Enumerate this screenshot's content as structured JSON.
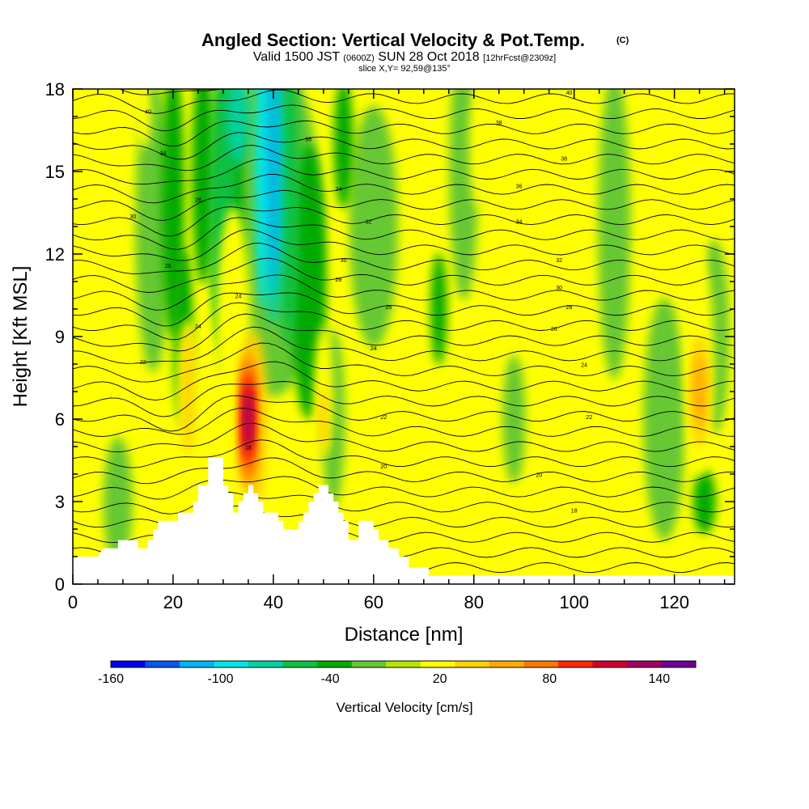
{
  "chart_data": {
    "type": "heatmap",
    "title": "Angled Section: Vertical Velocity & Pot.Temp.",
    "title_mark": "(C)",
    "subtitle": {
      "prefix": "Valid 1500 JST",
      "zulu": "(0600Z)",
      "date": "SUN 28 Oct 2018",
      "forecast": "[12hrFcst@2309z]"
    },
    "slice_label": "slice X,Y= 92,59@135°",
    "xlabel": "Distance [nm]",
    "ylabel": "Height [Kft MSL]",
    "xlim": [
      0,
      132
    ],
    "ylim": [
      0,
      18
    ],
    "x_ticks": [
      0,
      20,
      40,
      60,
      80,
      100,
      120
    ],
    "y_ticks": [
      0,
      3,
      6,
      9,
      12,
      15,
      18
    ],
    "colorbar": {
      "label": "Vertical Velocity [cm/s]",
      "tick_values": [
        -160,
        -100,
        -40,
        20,
        80,
        140
      ],
      "levels": [
        -160,
        -140,
        -120,
        -100,
        -80,
        -60,
        -40,
        -20,
        0,
        20,
        40,
        60,
        80,
        100,
        120,
        140,
        160
      ],
      "colors": [
        "#0000ee",
        "#0a55ee",
        "#00b4f0",
        "#00e6e6",
        "#00d2a0",
        "#10c040",
        "#00aa00",
        "#66c832",
        "#b4e600",
        "#ffff00",
        "#ffd200",
        "#ffaa00",
        "#ff7800",
        "#ff2800",
        "#d2002d",
        "#a00064",
        "#6e0096"
      ]
    },
    "terrain": [
      [
        0,
        1
      ],
      [
        5,
        1
      ],
      [
        6,
        1.3
      ],
      [
        9,
        1.3
      ],
      [
        9,
        1.6
      ],
      [
        13,
        1.6
      ],
      [
        13,
        1.3
      ],
      [
        15,
        1.3
      ],
      [
        15,
        1.6
      ],
      [
        16,
        1.6
      ],
      [
        16,
        2
      ],
      [
        17,
        2
      ],
      [
        17,
        2.3
      ],
      [
        21,
        2.3
      ],
      [
        21,
        2.6
      ],
      [
        24,
        2.6
      ],
      [
        24,
        3
      ],
      [
        25,
        3
      ],
      [
        25,
        3.6
      ],
      [
        27,
        3.6
      ],
      [
        27,
        4.6
      ],
      [
        30,
        4.6
      ],
      [
        30,
        3.6
      ],
      [
        31,
        3.6
      ],
      [
        31,
        3.3
      ],
      [
        32,
        3.3
      ],
      [
        32,
        2.6
      ],
      [
        33,
        2.6
      ],
      [
        33,
        3
      ],
      [
        34,
        3
      ],
      [
        34,
        3.3
      ],
      [
        35,
        3.3
      ],
      [
        35,
        3.6
      ],
      [
        36,
        3.6
      ],
      [
        36,
        3.3
      ],
      [
        37,
        3.3
      ],
      [
        37,
        3
      ],
      [
        38,
        3
      ],
      [
        38,
        2.6
      ],
      [
        41,
        2.6
      ],
      [
        41,
        2.3
      ],
      [
        42,
        2.3
      ],
      [
        42,
        2
      ],
      [
        45,
        2
      ],
      [
        45,
        2.3
      ],
      [
        46,
        2.3
      ],
      [
        46,
        2.6
      ],
      [
        47,
        2.6
      ],
      [
        47,
        3
      ],
      [
        48,
        3
      ],
      [
        48,
        3.3
      ],
      [
        49,
        3.3
      ],
      [
        49,
        3.6
      ],
      [
        51,
        3.6
      ],
      [
        51,
        3.3
      ],
      [
        52,
        3.3
      ],
      [
        52,
        3
      ],
      [
        53,
        3
      ],
      [
        53,
        2.6
      ],
      [
        54,
        2.6
      ],
      [
        54,
        2.3
      ],
      [
        55,
        2.3
      ],
      [
        55,
        1.6
      ],
      [
        57,
        1.6
      ],
      [
        57,
        2.3
      ],
      [
        60,
        2.3
      ],
      [
        60,
        2
      ],
      [
        61,
        2
      ],
      [
        61,
        1.6
      ],
      [
        63,
        1.6
      ],
      [
        63,
        1.3
      ],
      [
        65,
        1.3
      ],
      [
        65,
        1
      ],
      [
        67,
        1
      ],
      [
        67,
        0.6
      ],
      [
        71,
        0.6
      ],
      [
        71,
        0.3
      ],
      [
        132,
        0.3
      ]
    ],
    "pot_temp_contour_labels": [
      {
        "x": 15,
        "y": 17.1,
        "text": "40"
      },
      {
        "x": 18,
        "y": 15.6,
        "text": "34"
      },
      {
        "x": 25,
        "y": 13.9,
        "text": "28"
      },
      {
        "x": 12,
        "y": 13.3,
        "text": "30"
      },
      {
        "x": 19,
        "y": 11.5,
        "text": "26"
      },
      {
        "x": 33,
        "y": 10.4,
        "text": "24"
      },
      {
        "x": 25,
        "y": 9.3,
        "text": "24"
      },
      {
        "x": 14,
        "y": 8.0,
        "text": "22"
      },
      {
        "x": 35,
        "y": 4.9,
        "text": "18"
      },
      {
        "x": 47,
        "y": 16.1,
        "text": "36"
      },
      {
        "x": 53,
        "y": 14.3,
        "text": "34"
      },
      {
        "x": 59,
        "y": 13.1,
        "text": "32"
      },
      {
        "x": 54,
        "y": 11.7,
        "text": "30"
      },
      {
        "x": 53,
        "y": 11.0,
        "text": "28"
      },
      {
        "x": 63,
        "y": 10.0,
        "text": "26"
      },
      {
        "x": 60,
        "y": 8.5,
        "text": "24"
      },
      {
        "x": 62,
        "y": 6.0,
        "text": "22"
      },
      {
        "x": 62,
        "y": 4.2,
        "text": "20"
      },
      {
        "x": 85,
        "y": 16.7,
        "text": "38"
      },
      {
        "x": 99,
        "y": 17.8,
        "text": "40"
      },
      {
        "x": 98,
        "y": 15.4,
        "text": "38"
      },
      {
        "x": 89,
        "y": 14.4,
        "text": "36"
      },
      {
        "x": 89,
        "y": 13.1,
        "text": "34"
      },
      {
        "x": 97,
        "y": 11.7,
        "text": "32"
      },
      {
        "x": 97,
        "y": 10.7,
        "text": "30"
      },
      {
        "x": 99,
        "y": 10.0,
        "text": "28"
      },
      {
        "x": 96,
        "y": 9.2,
        "text": "26"
      },
      {
        "x": 102,
        "y": 7.9,
        "text": "24"
      },
      {
        "x": 103,
        "y": 6.0,
        "text": "22"
      },
      {
        "x": 93,
        "y": 3.9,
        "text": "20"
      },
      {
        "x": 100,
        "y": 2.6,
        "text": "18"
      }
    ]
  }
}
